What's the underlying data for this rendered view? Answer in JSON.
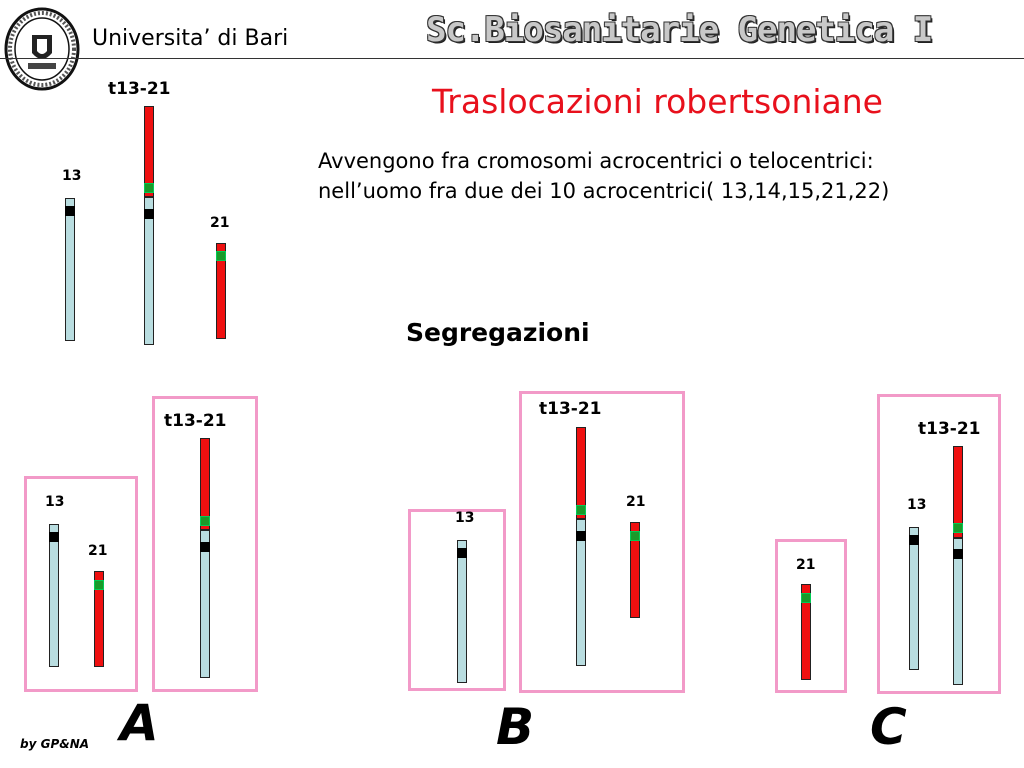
{
  "header": {
    "university": "Universita’ di Bari",
    "course": "Sc.Biosanitarie  Genetica I"
  },
  "title": "Traslocazioni robertsoniane",
  "description": [
    "Avvengono fra cromosomi acrocentrici o telocentrici:",
    "nell’uomo fra due dei 10 acrocentrici( 13,14,15,21,22)"
  ],
  "segregation_title": "Segregazioni",
  "labels": {
    "chr13": "13",
    "chr21": "21",
    "translocation": "t13-21"
  },
  "options": [
    "A",
    "B",
    "C"
  ],
  "credit": "by GP&NA",
  "colors": {
    "chr13": "#b9dde0",
    "chr21": "#ef1010",
    "centromere13": "#000000",
    "centromere21": "#1a9a2a",
    "box": "#f29ac8",
    "title": "#e8101c"
  }
}
